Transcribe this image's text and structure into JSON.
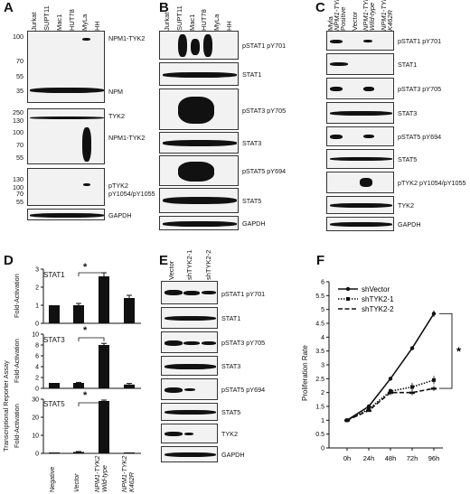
{
  "panels": {
    "A": "A",
    "B": "B",
    "C": "C",
    "D": "D",
    "E": "E",
    "F": "F"
  },
  "panel_a": {
    "lanes": [
      "Jurkat",
      "SUPT11",
      "Mac1",
      "HUT78",
      "MyLa",
      "HH"
    ],
    "mw": [
      "100",
      "70",
      "55",
      "35",
      "250",
      "130",
      "100",
      "70",
      "55",
      "130",
      "100",
      "70",
      "55"
    ],
    "labels": [
      "NPM1-TYK2",
      "NPM",
      "TYK2",
      "NPM1-TYK2",
      "pTYK2",
      "pY1054/pY1055",
      "GAPDH"
    ]
  },
  "panel_b": {
    "lanes": [
      "Jurkat",
      "SUPT11",
      "Mac1",
      "HUT78",
      "MyLa",
      "HH"
    ],
    "labels": [
      "pSTAT1 pY701",
      "STAT1",
      "pSTAT3 pY705",
      "STAT3",
      "pSTAT5 pY694",
      "STAT5",
      "GAPDH"
    ]
  },
  "panel_c": {
    "lanes": [
      "Myla",
      "NPM1-TYK2",
      "Positive",
      "Vector",
      "NPM1-TYK2",
      "Wild-type",
      "NPM1-TYK2",
      "K462R"
    ],
    "labels": [
      "pSTAT1 pY701",
      "STAT1",
      "pSTAT3 pY705",
      "STAT3",
      "pSTAT5 pY694",
      "STAT5",
      "pTYK2 pY1054/pY1055",
      "TYK2",
      "GAPDH"
    ]
  },
  "panel_d": {
    "ylabel": "Transcriptional Reporter Assay",
    "sub_ylabel": "Fold-Activation",
    "x_labels": [
      "Negative",
      "Vector",
      "NPM1-TYK2",
      "Wild-type",
      "NPM1-TYK2",
      "K462R"
    ],
    "sub": [
      {
        "name": "STAT1",
        "ticks": [
          "0",
          "1",
          "2",
          "3"
        ]
      },
      {
        "name": "STAT3",
        "ticks": [
          "0",
          "2",
          "4",
          "6",
          "8",
          "10"
        ]
      },
      {
        "name": "STAT5",
        "ticks": [
          "0",
          "10",
          "20",
          "30"
        ]
      }
    ],
    "star": "*"
  },
  "panel_e": {
    "lanes": [
      "Vector",
      "shTYK2-1",
      "shTYK2-2"
    ],
    "labels": [
      "pSTAT1 pY701",
      "STAT1",
      "pSTAT3 pY705",
      "STAT3",
      "pSTAT5 pY694",
      "STAT5",
      "TYK2",
      "GAPDH"
    ]
  },
  "chart_data": [
    {
      "type": "bar",
      "title": "STAT1",
      "categories": [
        "Negative",
        "Vector",
        "NPM1-TYK2 Wild-type",
        "NPM1-TYK2 K462R"
      ],
      "values": [
        1.0,
        1.0,
        2.6,
        1.4
      ],
      "errors": [
        0,
        0.1,
        0.2,
        0.15
      ],
      "ylim": [
        0,
        3
      ],
      "ylabel": "Fold-Activation"
    },
    {
      "type": "bar",
      "title": "STAT3",
      "categories": [
        "Negative",
        "Vector",
        "NPM1-TYK2 Wild-type",
        "NPM1-TYK2 K462R"
      ],
      "values": [
        1.0,
        1.0,
        8.0,
        0.7
      ],
      "errors": [
        0,
        0.1,
        0.3,
        0.2
      ],
      "ylim": [
        0,
        10
      ],
      "ylabel": "Fold-Activation"
    },
    {
      "type": "bar",
      "title": "STAT5",
      "categories": [
        "Negative",
        "Vector",
        "NPM1-TYK2 Wild-type",
        "NPM1-TYK2 K462R"
      ],
      "values": [
        0.5,
        0.8,
        29,
        0.5
      ],
      "errors": [
        0,
        0.2,
        0.5,
        0
      ],
      "ylim": [
        0,
        30
      ],
      "ylabel": "Fold-Activation"
    },
    {
      "type": "line",
      "x": [
        "0h",
        "24h",
        "48h",
        "72h",
        "96h"
      ],
      "series": [
        {
          "name": "shVector",
          "values": [
            1.0,
            1.5,
            2.5,
            3.6,
            4.85
          ],
          "errors": [
            0.02,
            0.05,
            0.05,
            0.05,
            0.12
          ]
        },
        {
          "name": "shTYK2-1",
          "values": [
            1.0,
            1.4,
            2.05,
            2.2,
            2.45
          ],
          "errors": [
            0.02,
            0.05,
            0.1,
            0.15,
            0.15
          ]
        },
        {
          "name": "shTYK2-2",
          "values": [
            1.0,
            1.35,
            2.0,
            2.0,
            2.15
          ],
          "errors": [
            0.02,
            0.05,
            0.1,
            0.1,
            0.1
          ]
        }
      ],
      "ylabel": "Proliferation Rate",
      "yticks": [
        "0",
        "0.5",
        "1",
        "1.5",
        "2",
        "2.5",
        "3",
        "3.5",
        "4",
        "4.5",
        "5",
        "5.5",
        "6"
      ],
      "ylim": [
        0,
        6
      ],
      "legend_position": "top-left",
      "star": "*"
    }
  ]
}
